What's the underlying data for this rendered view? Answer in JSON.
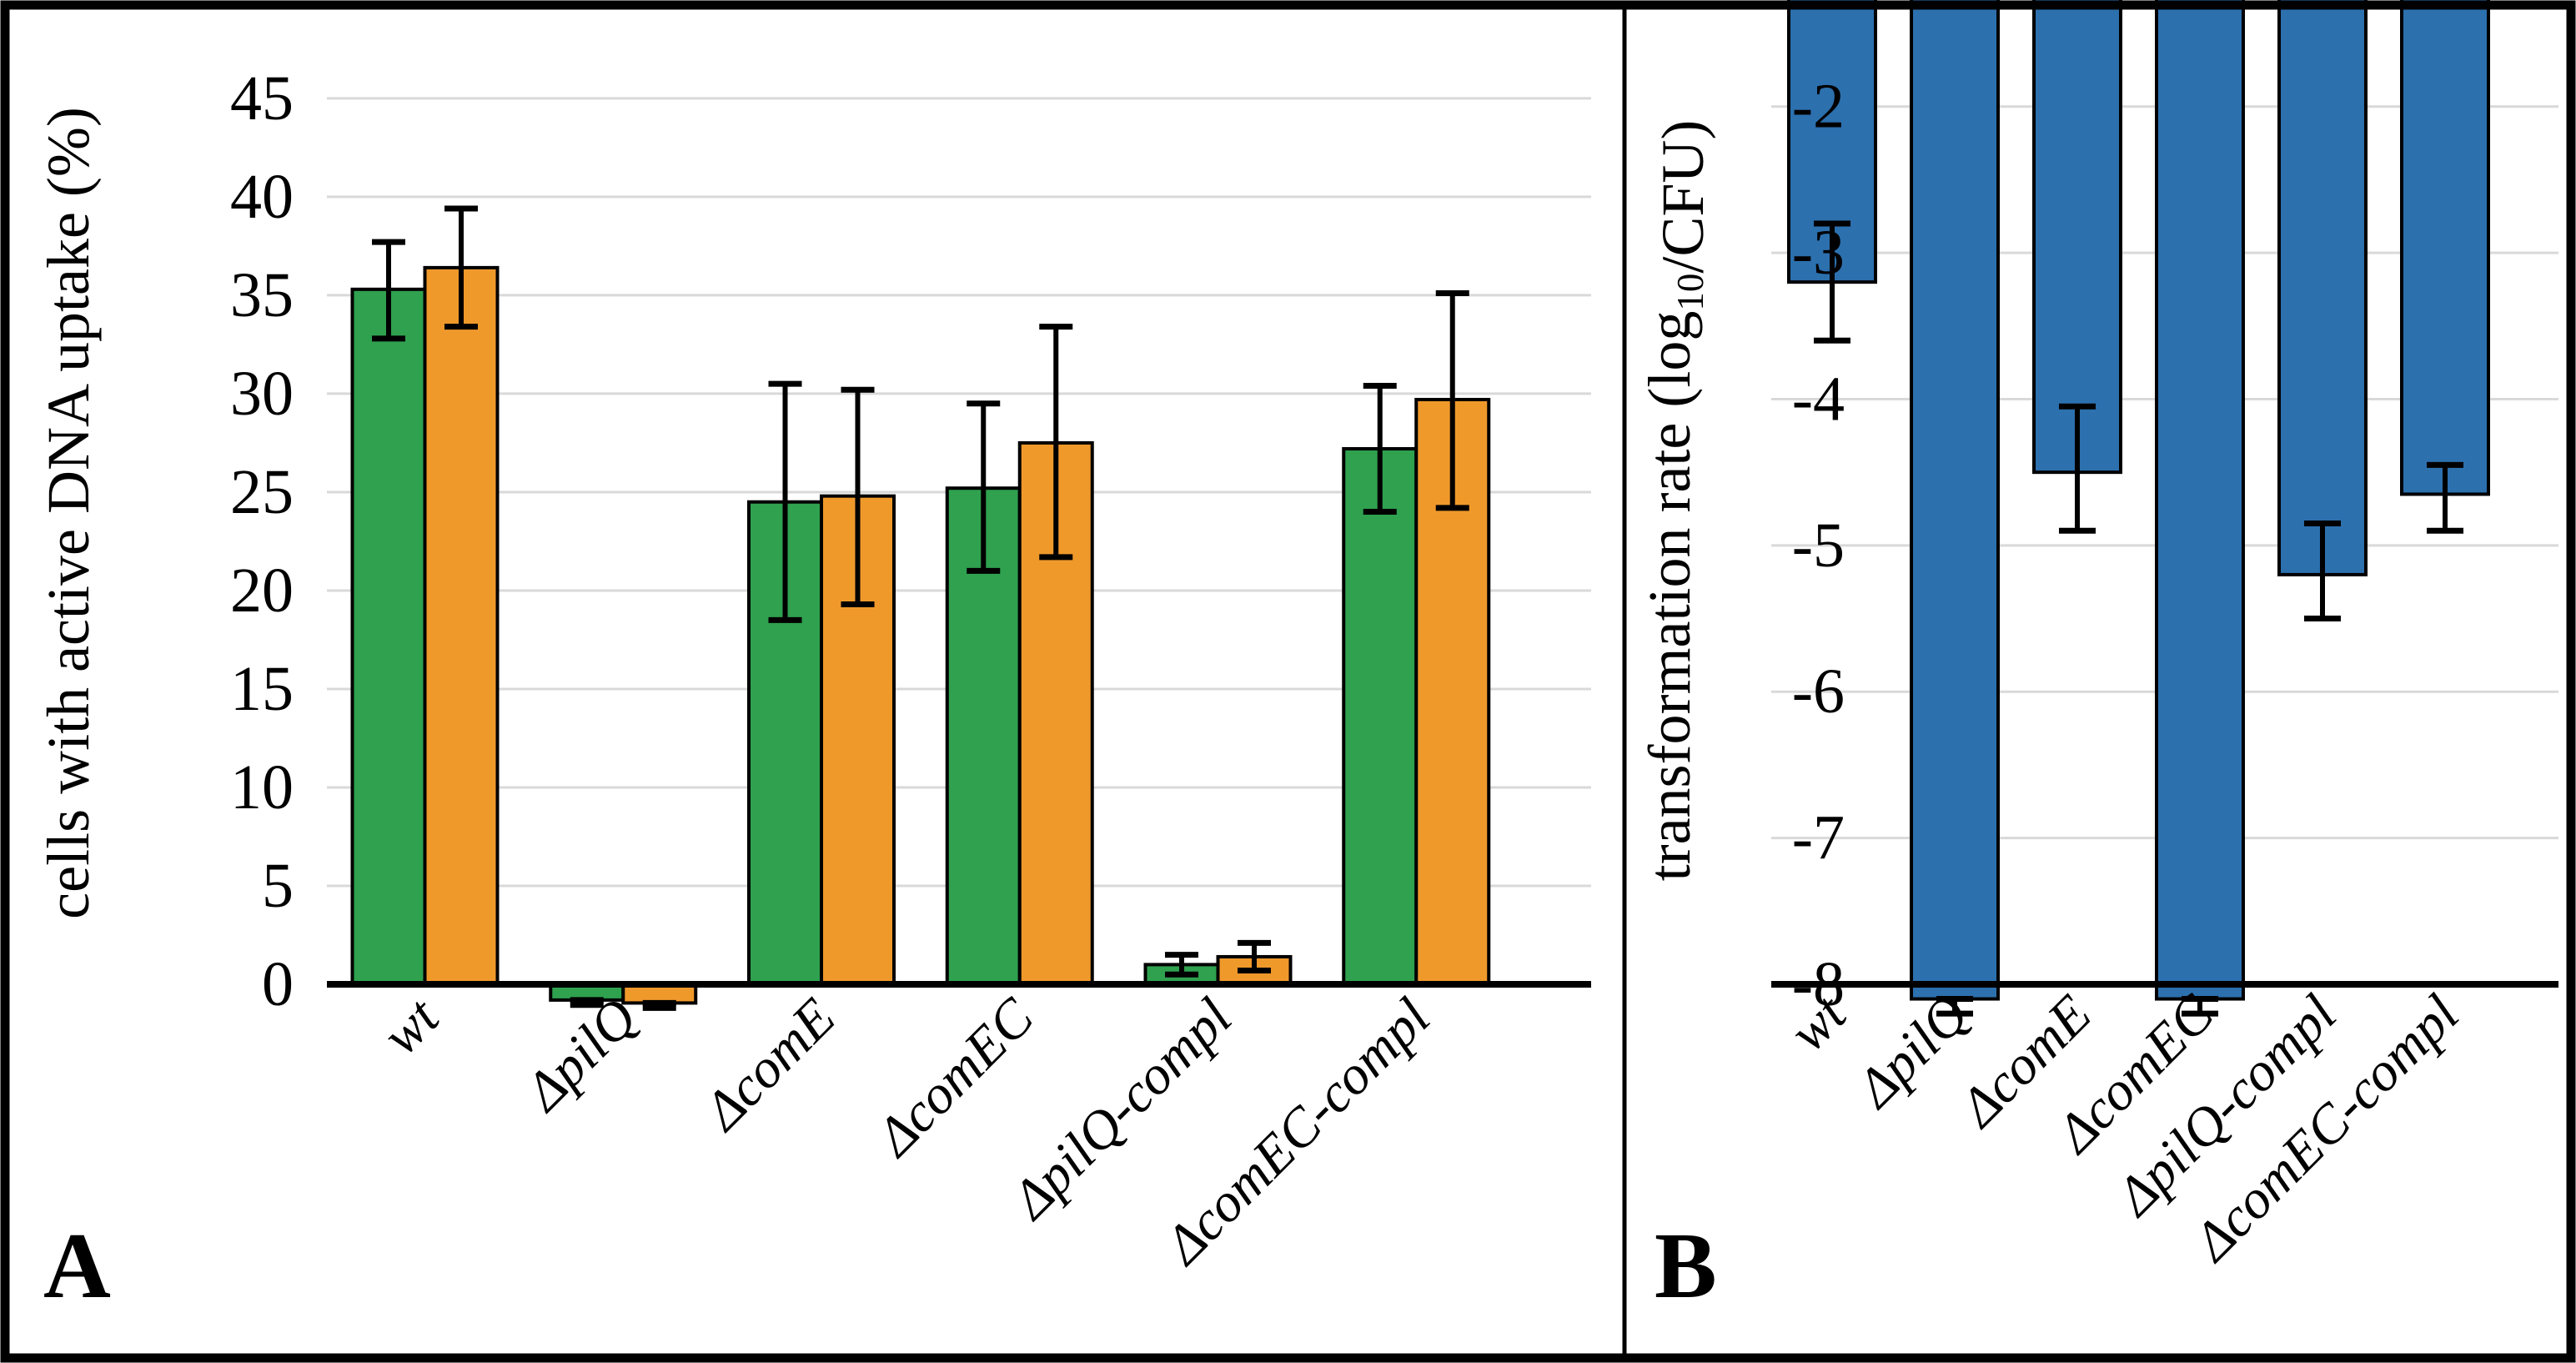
{
  "figure": {
    "background": "#ffffff",
    "border_color": "#000000",
    "gridline_color": "#d9d9d9",
    "axis_color": "#000000",
    "panel_a_letter": "A",
    "panel_b_letter": "B"
  },
  "chart_data": [
    {
      "panel": "A",
      "type": "bar",
      "title": "",
      "ylabel": "cells with active DNA uptake (%)",
      "ylabel_parts": [
        {
          "t": "cells with active DNA uptake (%)",
          "sub": false
        }
      ],
      "xlabel": "",
      "categories": [
        "wt",
        "ΔpilQ",
        "ΔcomE",
        "ΔcomEC",
        "ΔpilQ-compl",
        "ΔcomEC-compl"
      ],
      "series": [
        {
          "name": "green-series",
          "color": "#2fa14f",
          "values": [
            35.3,
            -0.8,
            24.5,
            25.2,
            1.0,
            27.2
          ],
          "err_low": [
            32.8,
            -1.05,
            18.5,
            21.0,
            0.5,
            24.0
          ],
          "err_high": [
            37.7,
            -0.8,
            30.5,
            29.5,
            1.5,
            30.4
          ]
        },
        {
          "name": "orange-series",
          "color": "#f0992b",
          "values": [
            36.4,
            -0.95,
            24.8,
            27.5,
            1.4,
            29.7
          ],
          "err_low": [
            33.4,
            -1.2,
            19.3,
            21.7,
            0.7,
            24.2
          ],
          "err_high": [
            39.4,
            -0.95,
            30.2,
            33.4,
            2.1,
            35.1
          ]
        }
      ],
      "ylim": [
        0,
        48.3
      ],
      "yticks": [
        0,
        5,
        10,
        15,
        20,
        25,
        30,
        35,
        40,
        45
      ],
      "grid": true,
      "legend": "none",
      "panel_label": "A"
    },
    {
      "panel": "B",
      "type": "bar",
      "title": "",
      "ylabel": "transformation rate (log10/CFU)",
      "ylabel_parts": [
        {
          "t": "transformation rate (log",
          "sub": false
        },
        {
          "t": "10",
          "sub": true
        },
        {
          "t": "/CFU)",
          "sub": false
        }
      ],
      "xlabel": "",
      "categories": [
        "wt",
        "ΔpilQ",
        "ΔcomE",
        "ΔcomEC",
        "ΔpilQ-compl",
        "ΔcomEC-compl"
      ],
      "series": [
        {
          "name": "blue-series",
          "color": "#2c70ae",
          "values": [
            -3.2,
            -8.1,
            -4.5,
            -8.1,
            -5.2,
            -4.65
          ],
          "err_low": [
            -3.6,
            -8.2,
            -4.9,
            -8.2,
            -5.5,
            -4.9
          ],
          "err_high": [
            -2.8,
            -8.1,
            -4.05,
            -8.1,
            -4.85,
            -4.45
          ]
        }
      ],
      "ylim": [
        -8,
        -1.5
      ],
      "yticks": [
        -8,
        -7,
        -6,
        -5,
        -4,
        -3,
        -2
      ],
      "grid": true,
      "legend": "none",
      "baseline": -8,
      "panel_label": "B"
    }
  ]
}
